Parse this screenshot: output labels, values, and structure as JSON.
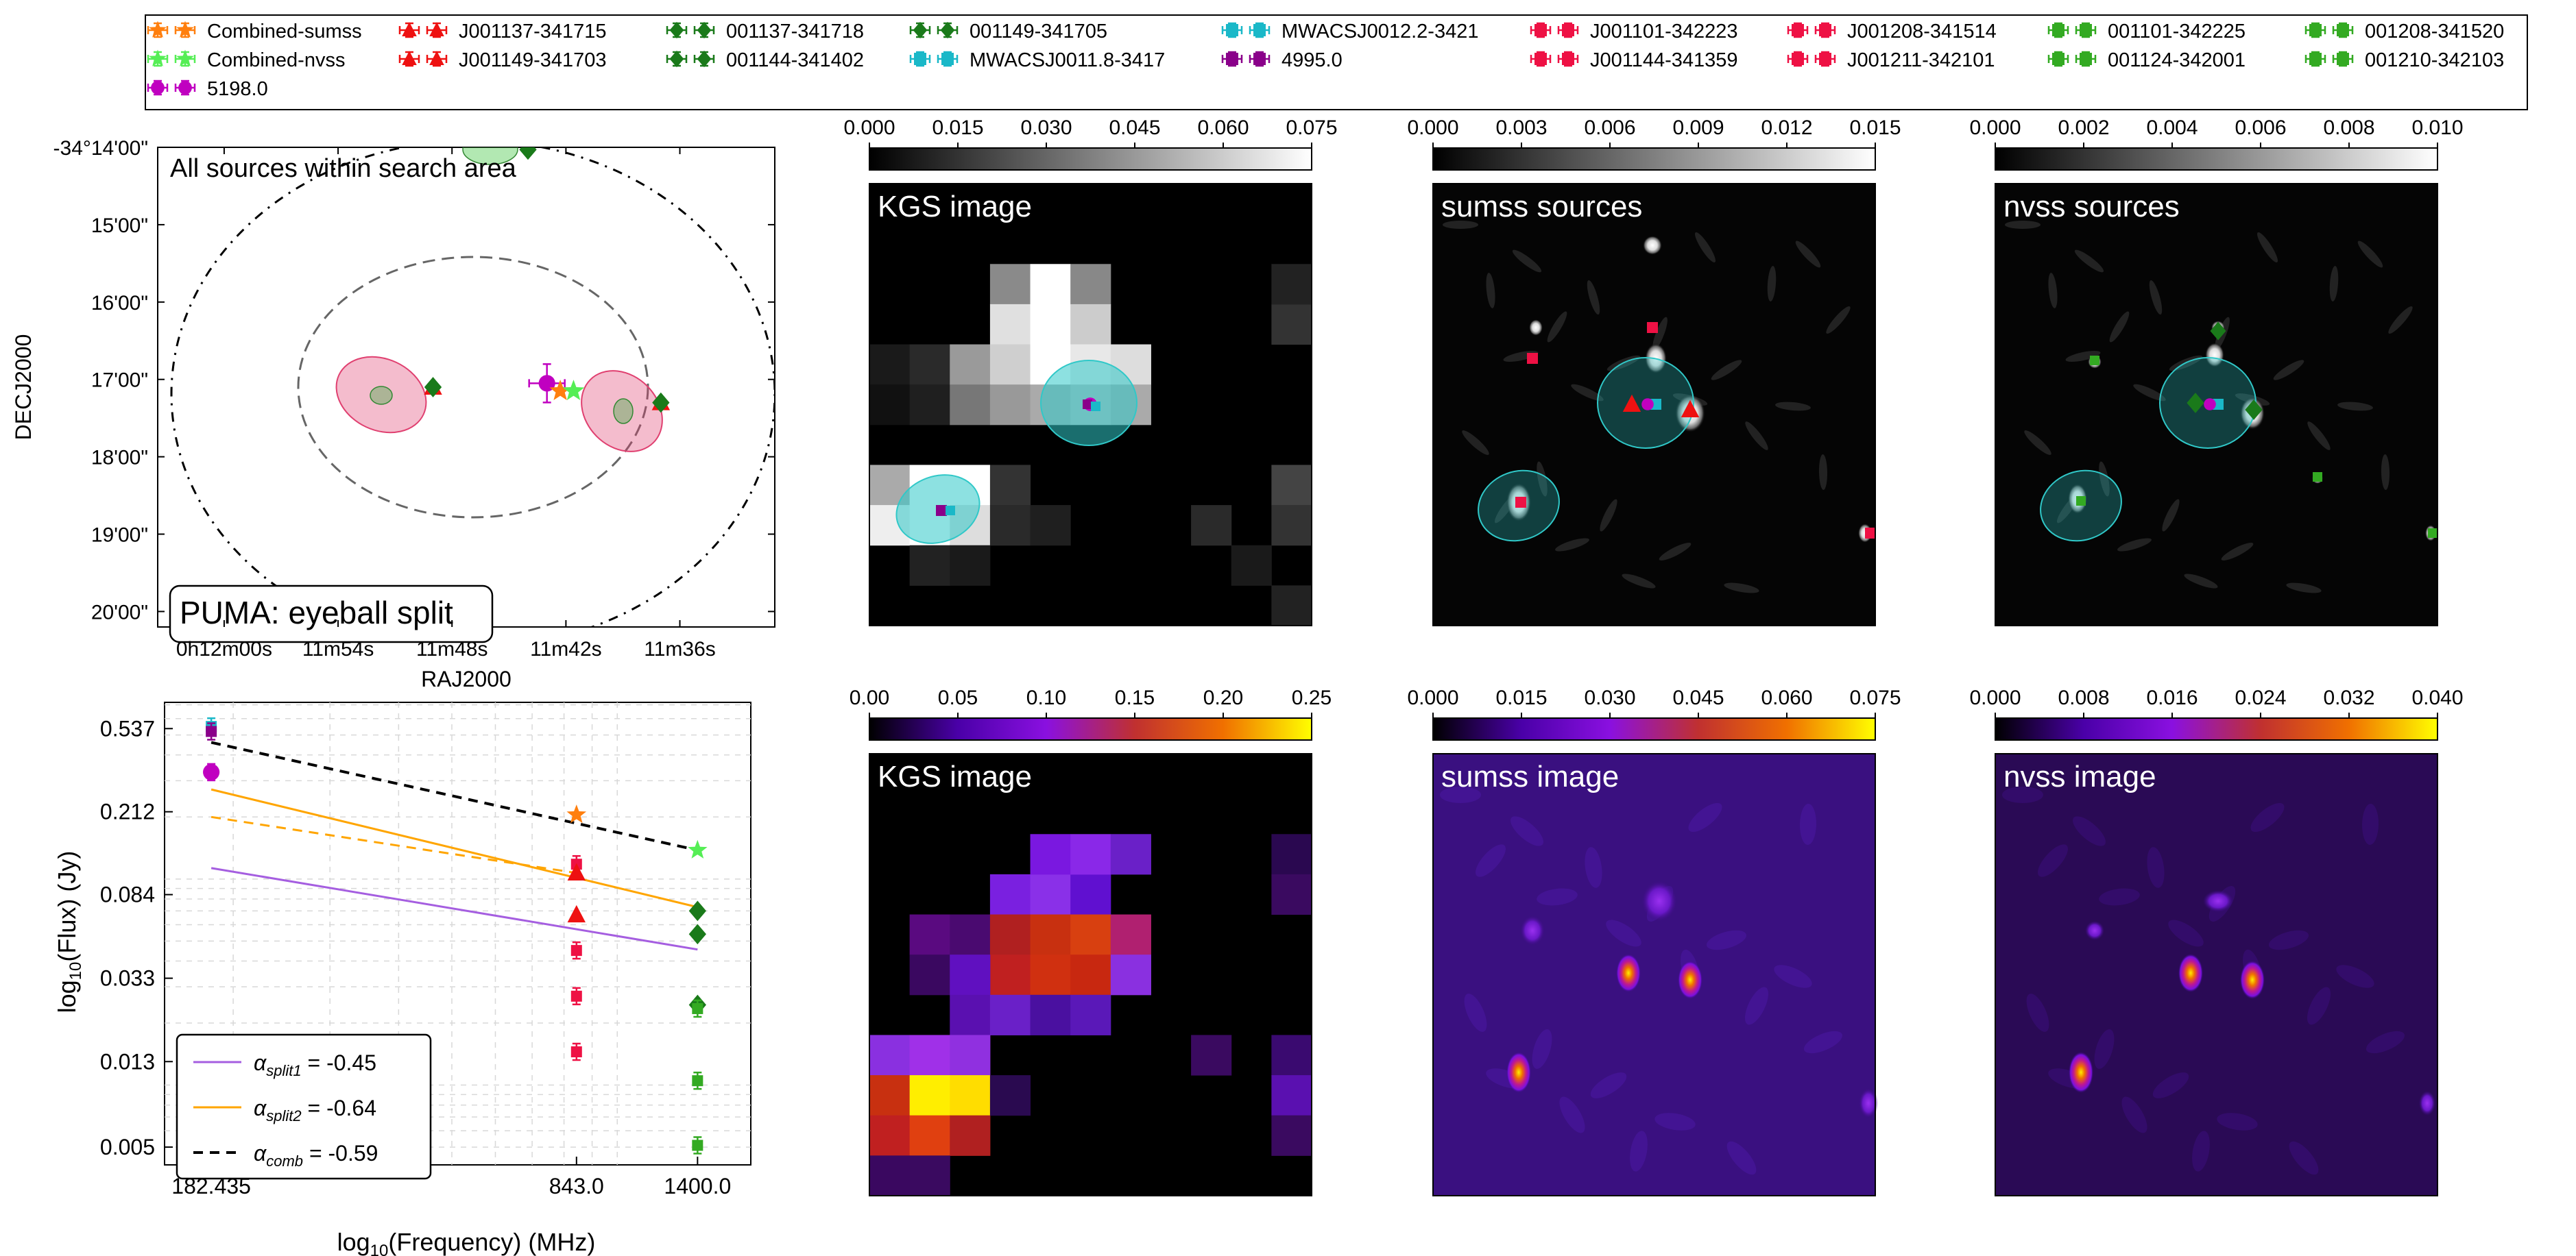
{
  "legend": {
    "entries": [
      {
        "label": "Combined-sumss",
        "color": "#ff7f0e",
        "marker": "star"
      },
      {
        "label": "Combined-nvss",
        "color": "#55ee55",
        "marker": "star"
      },
      {
        "label": "5198.0",
        "color": "#c000c0",
        "marker": "circle"
      },
      {
        "label": "J001137-341715",
        "color": "#ee1111",
        "marker": "triangle"
      },
      {
        "label": "J001149-341703",
        "color": "#ee1111",
        "marker": "triangle"
      },
      {
        "label": "001137-341718",
        "color": "#1a7a1a",
        "marker": "diamond"
      },
      {
        "label": "001144-341402",
        "color": "#1a7a1a",
        "marker": "diamond"
      },
      {
        "label": "001149-341705",
        "color": "#1a7a1a",
        "marker": "diamond"
      },
      {
        "label": "MWACSJ0011.8-3417",
        "color": "#1ab8c8",
        "marker": "square"
      },
      {
        "label": "MWACSJ0012.2-3421",
        "color": "#1ab8c8",
        "marker": "square"
      },
      {
        "label": "4995.0",
        "color": "#8a008a",
        "marker": "square"
      },
      {
        "label": "J001101-342223",
        "color": "#ee1144",
        "marker": "square"
      },
      {
        "label": "J001144-341359",
        "color": "#ee1144",
        "marker": "square"
      },
      {
        "label": "J001208-341514",
        "color": "#ee1144",
        "marker": "square"
      },
      {
        "label": "J001211-342101",
        "color": "#ee1144",
        "marker": "square"
      },
      {
        "label": "001101-342225",
        "color": "#33aa22",
        "marker": "square"
      },
      {
        "label": "001124-342001",
        "color": "#33aa22",
        "marker": "square"
      },
      {
        "label": "001208-341520",
        "color": "#33aa22",
        "marker": "square"
      },
      {
        "label": "001210-342103",
        "color": "#33aa22",
        "marker": "square"
      }
    ]
  },
  "chart_data": [
    {
      "type": "scatter",
      "panel": "sky-map",
      "title": "All sources within search area",
      "box_label": "PUMA: eyeball split",
      "xlabel": "RAJ2000",
      "ylabel": "DECJ2000",
      "xticks": [
        "0h12m00s",
        "11m54s",
        "11m48s",
        "11m42s",
        "11m36s"
      ],
      "yticks": [
        "-34°14'00\"",
        "15'00\"",
        "16'00\"",
        "17'00\"",
        "18'00\"",
        "19'00\"",
        "20'00\""
      ],
      "xlim_ra_sec": [
        723.5,
        691
      ],
      "ylim_dec_arcmin": [
        -14,
        -20.2
      ],
      "points": [
        {
          "name": "J001137-341715",
          "ra_sec": 697,
          "dec_arcmin": -17.3,
          "color": "#ee1111",
          "marker": "triangle"
        },
        {
          "name": "J001149-341703",
          "ra_sec": 709,
          "dec_arcmin": -17.1,
          "color": "#ee1111",
          "marker": "triangle"
        },
        {
          "name": "001137-341718",
          "ra_sec": 697,
          "dec_arcmin": -17.3,
          "color": "#1a7a1a",
          "marker": "diamond"
        },
        {
          "name": "001149-341705",
          "ra_sec": 709,
          "dec_arcmin": -17.1,
          "color": "#1a7a1a",
          "marker": "diamond"
        },
        {
          "name": "001144-341402",
          "ra_sec": 704,
          "dec_arcmin": -14.03,
          "color": "#1a7a1a",
          "marker": "diamond"
        },
        {
          "name": "5198.0",
          "ra_sec": 703,
          "dec_arcmin": -17.05,
          "color": "#c000c0",
          "marker": "circle"
        },
        {
          "name": "Combined-sumss",
          "ra_sec": 702.3,
          "dec_arcmin": -17.15,
          "color": "#ff7f0e",
          "marker": "star"
        },
        {
          "name": "Combined-nvss",
          "ra_sec": 701.6,
          "dec_arcmin": -17.15,
          "color": "#55ee55",
          "marker": "star"
        }
      ]
    },
    {
      "type": "scatter",
      "panel": "sed",
      "xlabel": "log10(Frequency) (MHz)",
      "ylabel": "log10(Flux) (Jy)",
      "xscale": "log",
      "yscale": "log",
      "xticks": [
        182.435,
        843.0,
        1400.0
      ],
      "yticks": [
        0.537,
        0.212,
        0.084,
        0.033,
        0.013,
        0.005
      ],
      "xlim": [
        150,
        1750
      ],
      "ylim": [
        0.0041,
        0.72
      ],
      "grid": true,
      "legend_position": "lower-left",
      "fit_lines": [
        {
          "label": "α_split1 = -0.45",
          "alpha": -0.45,
          "color": "#a55ee0",
          "dash": "solid",
          "points": [
            [
              182.435,
              0.113
            ],
            [
              1400.0,
              0.0455
            ]
          ]
        },
        {
          "label": "α_split2 = -0.64",
          "alpha": -0.64,
          "color": "#ffa500",
          "dash": "solid",
          "points": [
            [
              182.435,
              0.272
            ],
            [
              1400.0,
              0.073
            ]
          ]
        },
        {
          "label": "α_comb = -0.59",
          "alpha": -0.59,
          "color": "#000000",
          "dash": "dashed",
          "points": [
            [
              182.435,
              0.46
            ],
            [
              1400.0,
              0.138
            ]
          ]
        },
        {
          "label": "",
          "color": "#ffa500",
          "dash": "dashed",
          "points": [
            [
              182.435,
              0.2
            ],
            [
              843.0,
              0.107
            ]
          ]
        }
      ],
      "points": [
        {
          "series": "MWACSJ0011.8-3417",
          "x": 182.435,
          "y": 0.55,
          "color": "#1ab8c8",
          "marker": "square"
        },
        {
          "series": "4995.0",
          "x": 182.435,
          "y": 0.52,
          "color": "#8a008a",
          "marker": "square"
        },
        {
          "series": "5198.0",
          "x": 182.435,
          "y": 0.33,
          "color": "#c000c0",
          "marker": "circle"
        },
        {
          "series": "Combined-sumss",
          "x": 843.0,
          "y": 0.205,
          "color": "#ff7f0e",
          "marker": "star"
        },
        {
          "series": "J001144-341359",
          "x": 843.0,
          "y": 0.118,
          "color": "#ee1144",
          "marker": "square"
        },
        {
          "series": "J001137-341715",
          "x": 843.0,
          "y": 0.107,
          "color": "#ee1111",
          "marker": "triangle"
        },
        {
          "series": "J001149-341703",
          "x": 843.0,
          "y": 0.067,
          "color": "#ee1111",
          "marker": "triangle"
        },
        {
          "series": "J001211-342101",
          "x": 843.0,
          "y": 0.045,
          "color": "#ee1144",
          "marker": "square"
        },
        {
          "series": "J001208-341514",
          "x": 843.0,
          "y": 0.027,
          "color": "#ee1144",
          "marker": "square"
        },
        {
          "series": "J001101-342223",
          "x": 843.0,
          "y": 0.0145,
          "color": "#ee1144",
          "marker": "square"
        },
        {
          "series": "Combined-nvss",
          "x": 1400.0,
          "y": 0.138,
          "color": "#55ee55",
          "marker": "star"
        },
        {
          "series": "001137-341718",
          "x": 1400.0,
          "y": 0.07,
          "color": "#1a7a1a",
          "marker": "diamond"
        },
        {
          "series": "001149-341705",
          "x": 1400.0,
          "y": 0.054,
          "color": "#1a7a1a",
          "marker": "diamond"
        },
        {
          "series": "001144-341402",
          "x": 1400.0,
          "y": 0.0245,
          "color": "#1a7a1a",
          "marker": "diamond"
        },
        {
          "series": "001208-341520",
          "x": 1400.0,
          "y": 0.0235,
          "color": "#33aa22",
          "marker": "square"
        },
        {
          "series": "001124-342001",
          "x": 1400.0,
          "y": 0.0105,
          "color": "#33aa22",
          "marker": "square"
        },
        {
          "series": "001101-342225",
          "x": 1400.0,
          "y": 0.0051,
          "color": "#33aa22",
          "marker": "square"
        }
      ]
    },
    {
      "type": "heatmap",
      "panel": "kgs-image-gray",
      "title": "KGS image",
      "colormap": "gray",
      "colorbar_ticks": [
        "0.000",
        "0.015",
        "0.030",
        "0.045",
        "0.060",
        "0.075"
      ],
      "vmin": 0,
      "vmax": 0.075
    },
    {
      "type": "heatmap",
      "panel": "sumss-sources",
      "title": "sumss sources",
      "colormap": "gray",
      "colorbar_ticks": [
        "0.000",
        "0.003",
        "0.006",
        "0.009",
        "0.012",
        "0.015"
      ],
      "vmin": 0,
      "vmax": 0.015
    },
    {
      "type": "heatmap",
      "panel": "nvss-sources",
      "title": "nvss sources",
      "colormap": "gray",
      "colorbar_ticks": [
        "0.000",
        "0.002",
        "0.004",
        "0.006",
        "0.008",
        "0.010"
      ],
      "vmin": 0,
      "vmax": 0.01
    },
    {
      "type": "heatmap",
      "panel": "kgs-image-color",
      "title": "KGS image",
      "colormap": "gnuplot",
      "colorbar_ticks": [
        "0.00",
        "0.05",
        "0.10",
        "0.15",
        "0.20",
        "0.25"
      ],
      "vmin": 0,
      "vmax": 0.25
    },
    {
      "type": "heatmap",
      "panel": "sumss-image",
      "title": "sumss image",
      "colormap": "gnuplot",
      "colorbar_ticks": [
        "0.000",
        "0.015",
        "0.030",
        "0.045",
        "0.060",
        "0.075"
      ],
      "vmin": 0,
      "vmax": 0.075
    },
    {
      "type": "heatmap",
      "panel": "nvss-image",
      "title": "nvss image",
      "colormap": "gnuplot",
      "colorbar_ticks": [
        "0.000",
        "0.008",
        "0.016",
        "0.024",
        "0.032",
        "0.040"
      ],
      "vmin": 0,
      "vmax": 0.04
    }
  ]
}
